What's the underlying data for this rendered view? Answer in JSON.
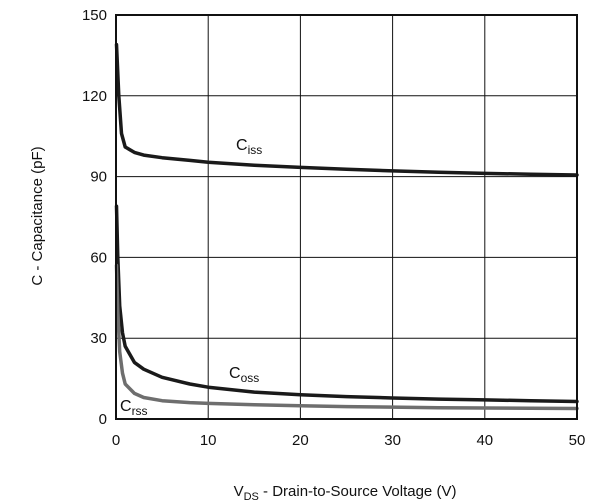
{
  "chart_data": {
    "type": "line",
    "title": "",
    "xlabel": {
      "main": "V",
      "sub": "DS",
      "rest": " - Drain-to-Source Voltage (V)"
    },
    "ylabel": "C - Capacitance (pF)",
    "xlim": [
      0,
      50
    ],
    "ylim": [
      0,
      150
    ],
    "xticks": [
      0,
      10,
      20,
      30,
      40,
      50
    ],
    "yticks": [
      0,
      30,
      60,
      90,
      120,
      150
    ],
    "xtick_labels": [
      "0",
      "10",
      "20",
      "30",
      "40",
      "50"
    ],
    "ytick_labels": [
      "0",
      "30",
      "60",
      "90",
      "120",
      "150"
    ],
    "grid": true,
    "series": [
      {
        "name": "Ciss",
        "label_main": "C",
        "label_sub": "iss",
        "color": "#1a1a1a",
        "x": [
          0.05,
          0.3,
          0.6,
          1,
          2,
          3,
          5,
          8,
          10,
          15,
          20,
          25,
          30,
          35,
          40,
          45,
          50
        ],
        "y": [
          139,
          120,
          106,
          101,
          99,
          98,
          97,
          96,
          95.3,
          94.2,
          93.4,
          92.7,
          92.1,
          91.6,
          91.2,
          90.9,
          90.6
        ]
      },
      {
        "name": "Coss",
        "label_main": "C",
        "label_sub": "oss",
        "color": "#1a1a1a",
        "x": [
          0.05,
          0.2,
          0.4,
          0.7,
          1,
          2,
          3,
          5,
          8,
          10,
          15,
          20,
          25,
          30,
          35,
          40,
          45,
          50
        ],
        "y": [
          79,
          60,
          42,
          32,
          27,
          21,
          18.5,
          15.5,
          13,
          11.8,
          10,
          9,
          8.3,
          7.8,
          7.4,
          7.1,
          6.8,
          6.5
        ]
      },
      {
        "name": "Crss",
        "label_main": "C",
        "label_sub": "rss",
        "color": "#6e6e6e",
        "x": [
          0.05,
          0.2,
          0.4,
          0.7,
          1,
          2,
          3,
          5,
          8,
          10,
          15,
          20,
          25,
          30,
          35,
          40,
          45,
          50
        ],
        "y": [
          57,
          40,
          25,
          17,
          13,
          9.5,
          8,
          6.8,
          6.1,
          5.8,
          5.3,
          4.9,
          4.6,
          4.4,
          4.2,
          4.1,
          4.0,
          3.9
        ]
      }
    ]
  }
}
